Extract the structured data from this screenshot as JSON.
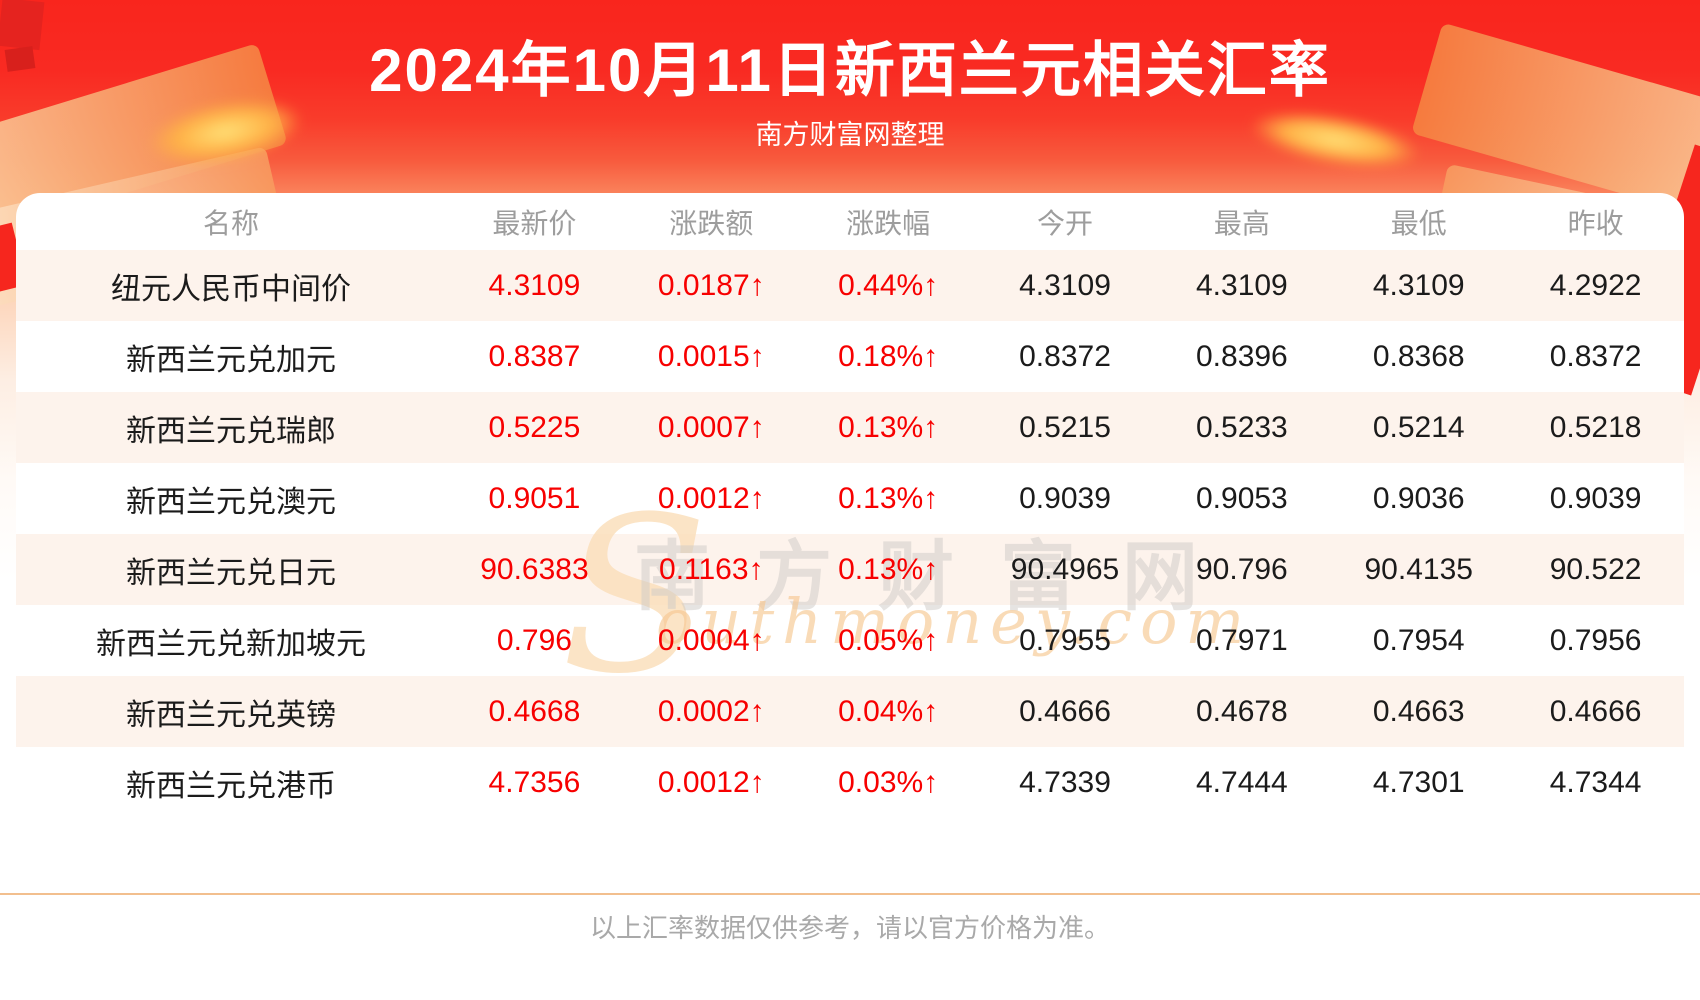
{
  "banner": {
    "title": "2024年10月11日新西兰元相关汇率",
    "subtitle": "南方财富网整理"
  },
  "table": {
    "columns": [
      "名称",
      "最新价",
      "涨跌额",
      "涨跌幅",
      "今开",
      "最高",
      "最低",
      "昨收"
    ],
    "rows": [
      {
        "name": "纽元人民币中间价",
        "latest": "4.3109",
        "change": "0.0187↑",
        "change_pct": "0.44%↑",
        "open": "4.3109",
        "high": "4.3109",
        "low": "4.3109",
        "prev_close": "4.2922"
      },
      {
        "name": "新西兰元兑加元",
        "latest": "0.8387",
        "change": "0.0015↑",
        "change_pct": "0.18%↑",
        "open": "0.8372",
        "high": "0.8396",
        "low": "0.8368",
        "prev_close": "0.8372"
      },
      {
        "name": "新西兰元兑瑞郎",
        "latest": "0.5225",
        "change": "0.0007↑",
        "change_pct": "0.13%↑",
        "open": "0.5215",
        "high": "0.5233",
        "low": "0.5214",
        "prev_close": "0.5218"
      },
      {
        "name": "新西兰元兑澳元",
        "latest": "0.9051",
        "change": "0.0012↑",
        "change_pct": "0.13%↑",
        "open": "0.9039",
        "high": "0.9053",
        "low": "0.9036",
        "prev_close": "0.9039"
      },
      {
        "name": "新西兰元兑日元",
        "latest": "90.6383",
        "change": "0.1163↑",
        "change_pct": "0.13%↑",
        "open": "90.4965",
        "high": "90.796",
        "low": "90.4135",
        "prev_close": "90.522"
      },
      {
        "name": "新西兰元兑新加坡元",
        "latest": "0.796",
        "change": "0.0004↑",
        "change_pct": "0.05%↑",
        "open": "0.7955",
        "high": "0.7971",
        "low": "0.7954",
        "prev_close": "0.7956"
      },
      {
        "name": "新西兰元兑英镑",
        "latest": "0.4668",
        "change": "0.0002↑",
        "change_pct": "0.04%↑",
        "open": "0.4666",
        "high": "0.4678",
        "low": "0.4663",
        "prev_close": "0.4666"
      },
      {
        "name": "新西兰元兑港币",
        "latest": "4.7356",
        "change": "0.0012↑",
        "change_pct": "0.03%↑",
        "open": "4.7339",
        "high": "4.7444",
        "low": "4.7301",
        "prev_close": "4.7344"
      }
    ]
  },
  "watermark": {
    "s": "S",
    "cn": "南方财富网",
    "en": "outhmoney.com"
  },
  "footer": {
    "disclaimer": "以上汇率数据仅供参考，请以官方价格为准。"
  },
  "colors": {
    "banner_red": "#f92a22",
    "up_red": "#f70000",
    "row_alt_bg": "#fdf3ec",
    "divider": "#f2bf8e",
    "header_text": "#9d9d9d"
  }
}
